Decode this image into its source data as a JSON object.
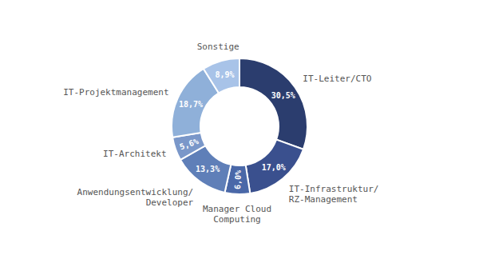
{
  "chart_data": {
    "type": "pie",
    "categories": [
      "IT-Leiter/CTO",
      "IT-Infrastruktur/\nRZ-Management",
      "Manager Cloud\nComputing",
      "Anwendungsentwicklung/\nDeveloper",
      "IT-Architekt",
      "IT-Projektmanagement",
      "Sonstige"
    ],
    "values": [
      30.5,
      17.0,
      6.0,
      13.3,
      5.6,
      18.7,
      8.9
    ],
    "value_labels": [
      "30,5%",
      "17,0%",
      "6,0%",
      "13,3%",
      "5,6%",
      "18,7%",
      "8,9%"
    ],
    "colors": [
      "#2b3d6e",
      "#3a508e",
      "#4a68a8",
      "#5f7fb8",
      "#7a97c9",
      "#8fb0d9",
      "#a8c3e8"
    ],
    "data_labels": true
  }
}
